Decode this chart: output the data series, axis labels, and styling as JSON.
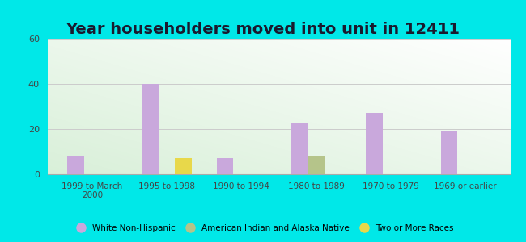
{
  "title": "Year householders moved into unit in 12411",
  "categories": [
    "1999 to March\n2000",
    "1995 to 1998",
    "1990 to 1994",
    "1980 to 1989",
    "1970 to 1979",
    "1969 or earlier"
  ],
  "series": [
    {
      "name": "White Non-Hispanic",
      "color": "#c9a8dc",
      "values": [
        8,
        40,
        7,
        23,
        27,
        19
      ]
    },
    {
      "name": "American Indian and Alaska Native",
      "color": "#b5c48a",
      "values": [
        0,
        0,
        0,
        8,
        0,
        0
      ]
    },
    {
      "name": "Two or More Races",
      "color": "#e8d84a",
      "values": [
        0,
        7,
        0,
        0,
        0,
        0
      ]
    }
  ],
  "ylim": [
    0,
    60
  ],
  "yticks": [
    0,
    20,
    40,
    60
  ],
  "bar_width": 0.22,
  "outer_bg": "#00e8e8",
  "title_fontsize": 14,
  "legend_color_white": "#c9a8dc",
  "legend_color_native": "#b5c48a",
  "legend_color_two": "#e8d84a"
}
